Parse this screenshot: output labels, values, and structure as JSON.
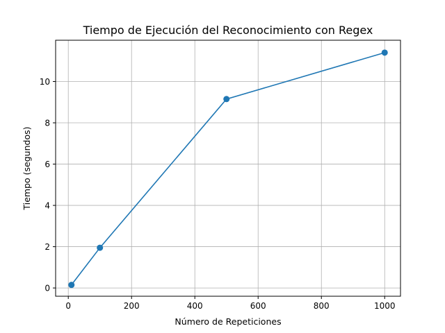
{
  "chart_data": {
    "type": "line",
    "title": "Tiempo de Ejecución del Reconocimiento con Regex",
    "xlabel": "Número de Repeticiones",
    "ylabel": "Tiempo (segundos)",
    "xlim": [
      -40,
      1050
    ],
    "ylim": [
      -0.4,
      12.0
    ],
    "xticks": [
      0,
      200,
      400,
      600,
      800,
      1000
    ],
    "yticks": [
      0,
      2,
      4,
      6,
      8,
      10
    ],
    "grid": true,
    "marker": "circle",
    "series": [
      {
        "color": "#1f77b4",
        "x": [
          10,
          100,
          500,
          1000
        ],
        "y": [
          0.15,
          1.95,
          9.15,
          11.4
        ]
      }
    ]
  }
}
